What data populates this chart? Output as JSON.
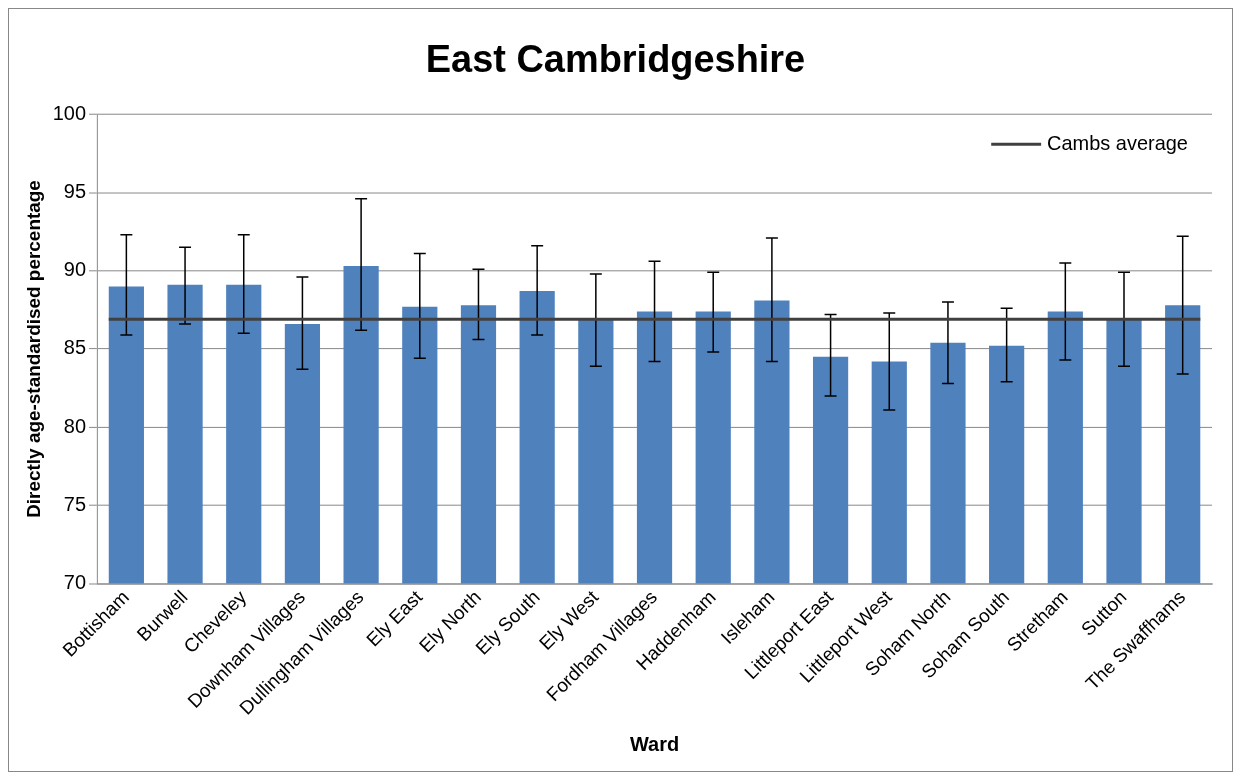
{
  "chart_data": {
    "type": "bar",
    "title": "East Cambridgeshire",
    "xlabel": "Ward",
    "ylabel": "Directly age-standardised percentage",
    "categories": [
      "Bottisham",
      "Burwell",
      "Cheveley",
      "Downham Villages",
      "Dullingham Villages",
      "Ely East",
      "Ely North",
      "Ely South",
      "Ely West",
      "Fordham Villages",
      "Haddenham",
      "Isleham",
      "Littleport East",
      "Littleport West",
      "Soham North",
      "Soham South",
      "Stretham",
      "Sutton",
      "The Swaffhams"
    ],
    "values": [
      89.0,
      89.1,
      89.1,
      86.6,
      90.3,
      87.7,
      87.8,
      88.7,
      86.9,
      87.4,
      87.4,
      88.1,
      84.5,
      84.2,
      85.4,
      85.2,
      87.4,
      86.9,
      87.8
    ],
    "errors": [
      [
        85.9,
        92.3
      ],
      [
        86.6,
        91.5
      ],
      [
        86.0,
        92.3
      ],
      [
        83.7,
        89.6
      ],
      [
        86.2,
        94.6
      ],
      [
        84.4,
        91.1
      ],
      [
        85.6,
        90.1
      ],
      [
        85.9,
        91.6
      ],
      [
        83.9,
        89.8
      ],
      [
        84.2,
        90.6
      ],
      [
        84.8,
        89.9
      ],
      [
        84.2,
        92.1
      ],
      [
        82.0,
        87.2
      ],
      [
        81.1,
        87.3
      ],
      [
        82.8,
        88.0
      ],
      [
        82.9,
        87.6
      ],
      [
        84.3,
        90.5
      ],
      [
        83.9,
        89.9
      ],
      [
        83.4,
        92.2
      ]
    ],
    "color": "#4f81bd",
    "ylim": [
      70,
      100
    ],
    "yticks": [
      70,
      75,
      80,
      85,
      90,
      95,
      100
    ],
    "grid": "y",
    "ref_lines": [
      {
        "axis": "y",
        "value": 86.9,
        "label": "Cambs average",
        "color": "#404040"
      }
    ],
    "legend": "top right"
  }
}
